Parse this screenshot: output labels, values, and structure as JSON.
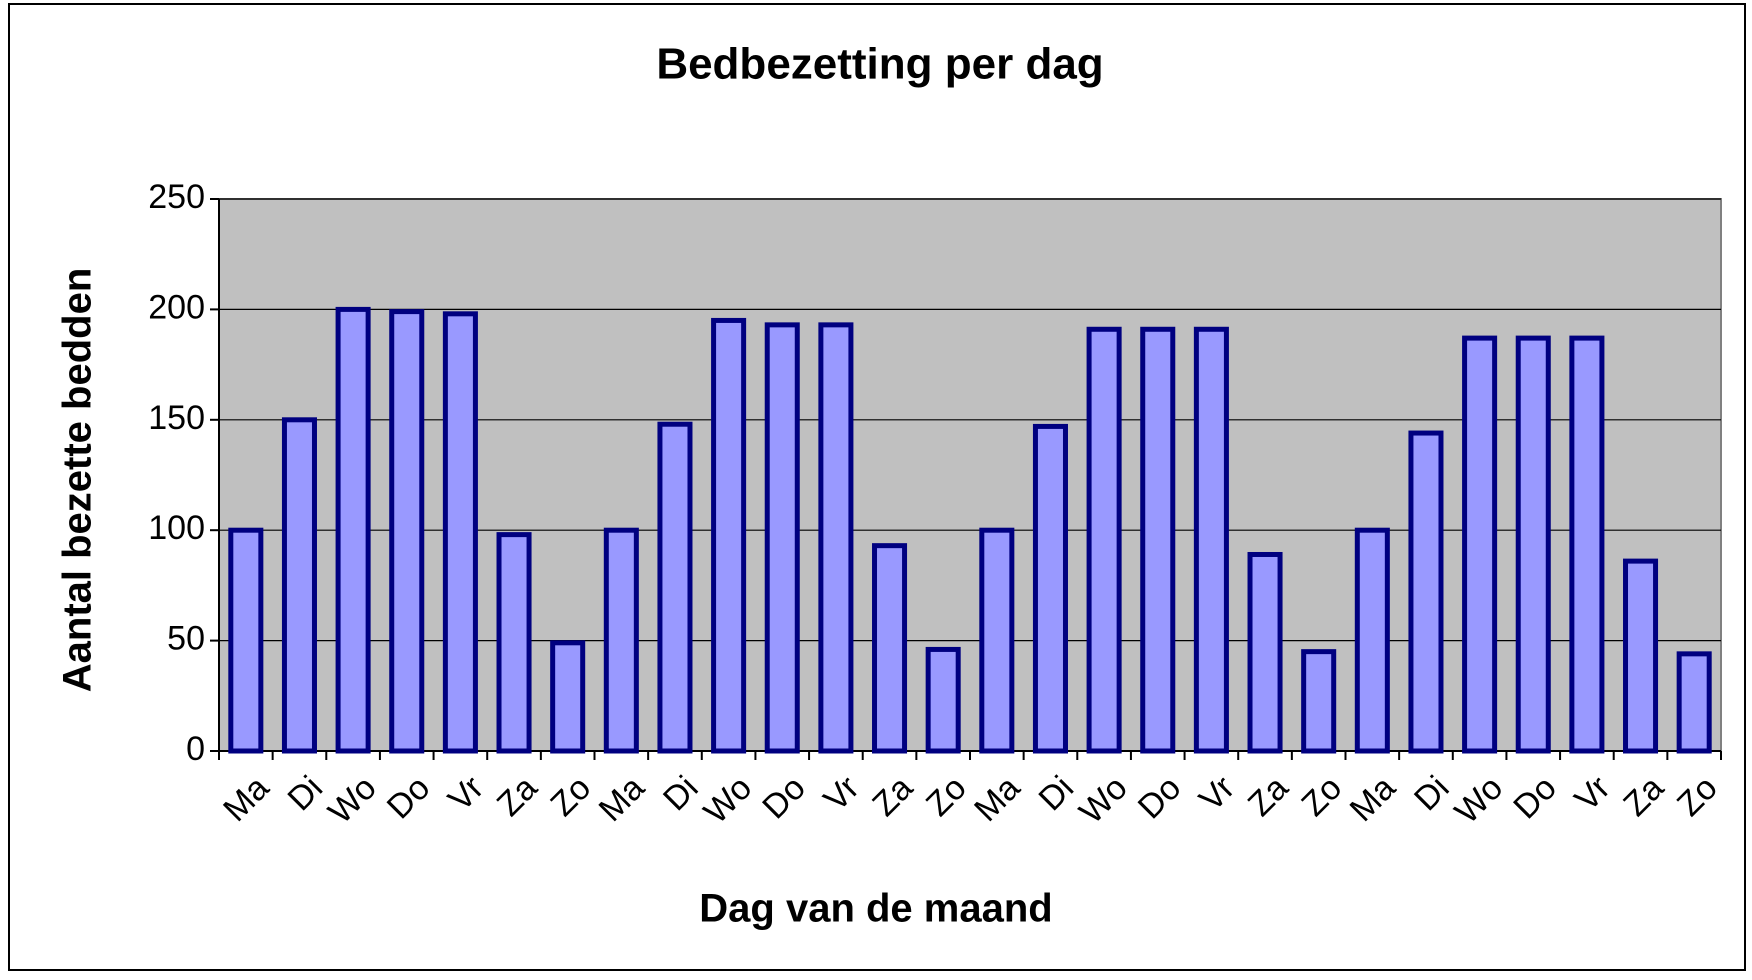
{
  "chart_data": {
    "type": "bar",
    "title": "Bedbezetting per dag",
    "x_label": "Dag van de maand",
    "y_label": "Aantal bezette bedden",
    "categories": [
      "Ma",
      "Di",
      "Wo",
      "Do",
      "Vr",
      "Za",
      "Zo",
      "Ma",
      "Di",
      "Wo",
      "Do",
      "Vr",
      "Za",
      "Zo",
      "Ma",
      "Di",
      "Wo",
      "Do",
      "Vr",
      "Za",
      "Zo",
      "Ma",
      "Di",
      "Wo",
      "Do",
      "Vr",
      "Za",
      "Zo"
    ],
    "values": [
      100,
      150,
      200,
      199,
      198,
      98,
      49,
      100,
      148,
      195,
      193,
      193,
      93,
      46,
      100,
      147,
      191,
      191,
      191,
      89,
      45,
      100,
      144,
      187,
      187,
      187,
      86,
      44
    ],
    "color": "#9999ff",
    "edge_color": "#000080",
    "ylim": [
      0,
      250
    ],
    "yticks": [
      0,
      50,
      100,
      150,
      200,
      250
    ],
    "grid": true
  }
}
